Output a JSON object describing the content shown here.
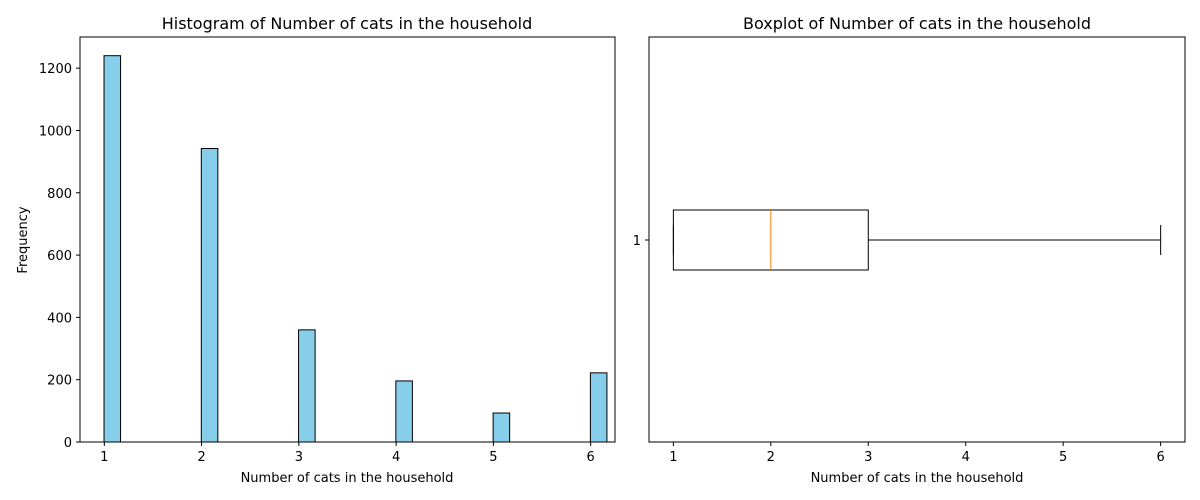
{
  "chart_data": [
    {
      "type": "bar",
      "title": "Histogram of Number of cats in the household",
      "xlabel": "Number of cats in the household",
      "ylabel": "Frequency",
      "x_ticks": [
        1,
        2,
        3,
        4,
        5,
        6
      ],
      "y_ticks": [
        0,
        200,
        400,
        600,
        800,
        1000,
        1200
      ],
      "xlim": [
        0.75,
        6.25
      ],
      "ylim": [
        0,
        1300
      ],
      "bins": [
        {
          "x": 1,
          "value": 1240
        },
        {
          "x": 2,
          "value": 942
        },
        {
          "x": 3,
          "value": 360
        },
        {
          "x": 4,
          "value": 196
        },
        {
          "x": 5,
          "value": 93
        },
        {
          "x": 6,
          "value": 222
        }
      ],
      "bar_color": "#87CEEB",
      "edge_color": "#000000",
      "grid": false
    },
    {
      "type": "boxplot",
      "title": "Boxplot of Number of cats in the household",
      "xlabel": "Number of cats in the household",
      "x_ticks": [
        1,
        2,
        3,
        4,
        5,
        6
      ],
      "y_ticks": [
        "1"
      ],
      "xlim": [
        0.75,
        6.25
      ],
      "box": {
        "min": 1,
        "q1": 1,
        "median": 2,
        "q3": 3,
        "max": 6
      },
      "median_color": "#ff7f0e",
      "grid": false
    }
  ]
}
